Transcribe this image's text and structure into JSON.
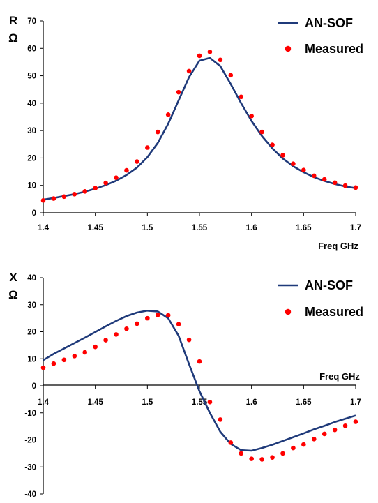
{
  "colors": {
    "model": "#1f3a7a",
    "measured": "#ff0000",
    "axis": "#000000"
  },
  "chart_data": [
    {
      "type": "line",
      "ylabel": [
        "R",
        "Ω"
      ],
      "xlabel": "Freq GHz",
      "xlim": [
        1.4,
        1.7
      ],
      "ylim": [
        0,
        70
      ],
      "xticks": [
        "1.4",
        "1.45",
        "1.5",
        "1.55",
        "1.6",
        "1.65",
        "1.7"
      ],
      "yticks": [
        "0",
        "10",
        "20",
        "30",
        "40",
        "50",
        "60",
        "70"
      ],
      "grid": false,
      "legend_position": "top-right",
      "series": [
        {
          "name": "AN-SOF",
          "kind": "line",
          "x": [
            1.4,
            1.41,
            1.42,
            1.43,
            1.44,
            1.45,
            1.46,
            1.47,
            1.48,
            1.49,
            1.5,
            1.51,
            1.52,
            1.53,
            1.54,
            1.55,
            1.56,
            1.57,
            1.58,
            1.59,
            1.6,
            1.61,
            1.62,
            1.63,
            1.64,
            1.65,
            1.66,
            1.67,
            1.68,
            1.69,
            1.7
          ],
          "y": [
            4.8,
            5.4,
            6.1,
            6.8,
            7.7,
            8.8,
            10.1,
            11.7,
            13.8,
            16.5,
            20.3,
            25.5,
            32.5,
            41,
            49.5,
            55.5,
            56.5,
            53.5,
            47,
            40,
            33.5,
            28,
            23.5,
            19.8,
            17,
            14.8,
            13,
            11.6,
            10.5,
            9.6,
            9
          ]
        },
        {
          "name": "Measured",
          "kind": "scatter",
          "x": [
            1.4,
            1.41,
            1.42,
            1.43,
            1.44,
            1.45,
            1.46,
            1.47,
            1.48,
            1.49,
            1.5,
            1.51,
            1.52,
            1.53,
            1.54,
            1.55,
            1.56,
            1.57,
            1.58,
            1.59,
            1.6,
            1.61,
            1.62,
            1.63,
            1.64,
            1.65,
            1.66,
            1.67,
            1.68,
            1.69,
            1.7
          ],
          "y": [
            4.5,
            5.2,
            5.9,
            6.8,
            7.8,
            9,
            10.9,
            12.8,
            15.5,
            18.7,
            23.8,
            29.5,
            35.8,
            44,
            51.7,
            57.3,
            58.7,
            55.8,
            50.2,
            42.3,
            35.3,
            29.5,
            24.8,
            21,
            17.9,
            15.6,
            13.5,
            12.2,
            11,
            9.9,
            9.2
          ]
        }
      ]
    },
    {
      "type": "line",
      "ylabel": [
        "X",
        "Ω"
      ],
      "xlabel": "Freq GHz",
      "xlim": [
        1.4,
        1.7
      ],
      "ylim": [
        -40,
        40
      ],
      "xticks": [
        "1.4",
        "1.45",
        "1.5",
        "1.55",
        "1.6",
        "1.65",
        "1.7"
      ],
      "yticks": [
        "-40",
        "-30",
        "-20",
        "-10",
        "0",
        "10",
        "20",
        "30",
        "40"
      ],
      "grid": false,
      "legend_position": "top-right",
      "series": [
        {
          "name": "AN-SOF",
          "kind": "line",
          "x": [
            1.4,
            1.41,
            1.42,
            1.43,
            1.44,
            1.45,
            1.46,
            1.47,
            1.48,
            1.49,
            1.5,
            1.51,
            1.52,
            1.53,
            1.54,
            1.55,
            1.56,
            1.57,
            1.58,
            1.59,
            1.6,
            1.61,
            1.62,
            1.63,
            1.64,
            1.65,
            1.66,
            1.67,
            1.68,
            1.69,
            1.7
          ],
          "y": [
            9.5,
            11.8,
            13.8,
            15.8,
            17.8,
            19.9,
            22,
            24,
            25.8,
            27.1,
            27.8,
            27.5,
            25,
            18.5,
            8,
            -2,
            -10,
            -17,
            -21.5,
            -23.8,
            -24,
            -23,
            -21.8,
            -20.4,
            -19,
            -17.6,
            -16.1,
            -14.8,
            -13.4,
            -12.2,
            -11
          ]
        },
        {
          "name": "Measured",
          "kind": "scatter",
          "x": [
            1.4,
            1.41,
            1.42,
            1.43,
            1.44,
            1.45,
            1.46,
            1.47,
            1.48,
            1.49,
            1.5,
            1.51,
            1.52,
            1.53,
            1.54,
            1.55,
            1.56,
            1.57,
            1.58,
            1.59,
            1.6,
            1.61,
            1.62,
            1.63,
            1.64,
            1.65,
            1.66,
            1.67,
            1.68,
            1.69,
            1.7
          ],
          "y": [
            6.7,
            8.2,
            9.6,
            11,
            12.4,
            14.4,
            16.9,
            19,
            21.1,
            23,
            25,
            26.2,
            26.1,
            22.8,
            17,
            9,
            -6,
            -12.5,
            -21,
            -25,
            -27,
            -27.2,
            -26.5,
            -25,
            -23,
            -21.7,
            -19.7,
            -17.8,
            -16.3,
            -14.8,
            -13.3
          ]
        }
      ]
    }
  ]
}
